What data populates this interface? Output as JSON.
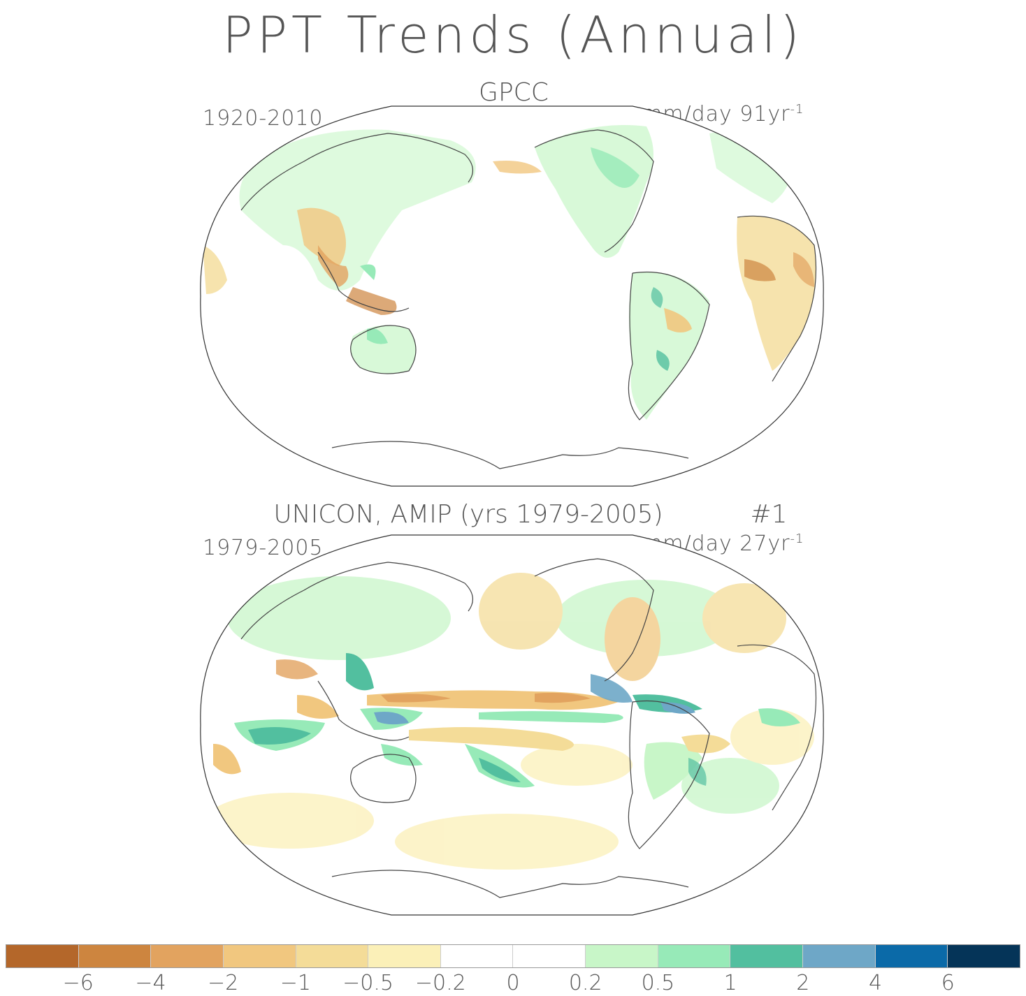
{
  "title": "PPT Trends (Annual)",
  "panels": [
    {
      "title": "GPCC",
      "period": "1920-2010",
      "units": "mm/day 91yr",
      "units_exp": "-1"
    },
    {
      "title": "UNICON, AMIP (yrs 1979-2005)",
      "ensemble": "#1",
      "period": "1979-2005",
      "units": "mm/day 27yr",
      "units_exp": "-1"
    }
  ],
  "colorbar": {
    "colors": [
      "#b4672a",
      "#cd853f",
      "#e2a35f",
      "#f1c77f",
      "#f4dc98",
      "#fbf0b8",
      "#ffffff",
      "#ffffff",
      "#c8f6c8",
      "#97eab8",
      "#52bf9f",
      "#6ea7c7",
      "#0b6aa8",
      "#053458"
    ],
    "tick_labels": [
      "-6",
      "-4",
      "-2",
      "-1",
      "-0.5",
      "-0.2",
      "0",
      "0.2",
      "0.5",
      "1",
      "2",
      "4",
      "6"
    ]
  },
  "map_colors": {
    "coast": "#444444",
    "outline": "#333333",
    "dry_strong": "#cd853f",
    "dry": "#f1c77f",
    "dry_light": "#fbf0b8",
    "wet_light": "#c8f6c8",
    "wet": "#97eab8",
    "wet_strong": "#52bf9f",
    "wet_max": "#6ea7c7"
  }
}
